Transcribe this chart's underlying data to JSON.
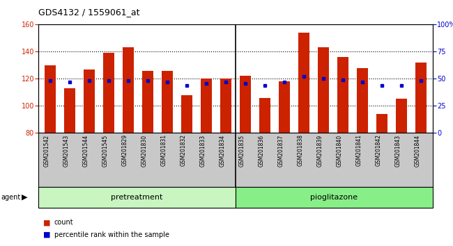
{
  "title": "GDS4132 / 1559061_at",
  "samples": [
    "GSM201542",
    "GSM201543",
    "GSM201544",
    "GSM201545",
    "GSM201829",
    "GSM201830",
    "GSM201831",
    "GSM201832",
    "GSM201833",
    "GSM201834",
    "GSM201835",
    "GSM201836",
    "GSM201837",
    "GSM201838",
    "GSM201839",
    "GSM201840",
    "GSM201841",
    "GSM201842",
    "GSM201843",
    "GSM201844"
  ],
  "counts": [
    130,
    113,
    127,
    139,
    143,
    126,
    126,
    108,
    120,
    120,
    122,
    106,
    118,
    154,
    143,
    136,
    128,
    94,
    105,
    132
  ],
  "percentile": [
    48,
    47,
    48,
    48,
    48,
    48,
    47,
    44,
    46,
    47,
    46,
    44,
    47,
    52,
    50,
    49,
    47,
    44,
    44,
    48
  ],
  "group_labels": [
    "pretreatment",
    "pioglitazone"
  ],
  "group_sizes": [
    10,
    10
  ],
  "group_colors_light": [
    "#c8f5c0",
    "#88ee88"
  ],
  "bar_color": "#cc2200",
  "dot_color": "#0000cc",
  "ylim_left": [
    80,
    160
  ],
  "ylim_right": [
    0,
    100
  ],
  "yticks_left": [
    80,
    100,
    120,
    140,
    160
  ],
  "yticks_right": [
    0,
    25,
    50,
    75,
    100
  ],
  "ytick_labels_right": [
    "0",
    "25",
    "50",
    "75",
    "100%"
  ],
  "grid_lines": [
    100,
    120,
    140
  ],
  "agent_label": "agent",
  "xtick_bg": "#c8c8c8"
}
